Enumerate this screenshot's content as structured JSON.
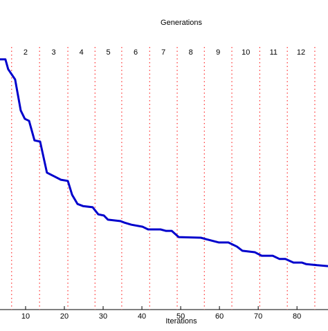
{
  "chart_data": {
    "type": "line",
    "title": "Generations",
    "xlabel": "Iterations",
    "x": [
      3.4,
      4.8,
      5.5,
      7.3,
      8.75,
      9.8,
      10.9,
      12.3,
      13.75,
      15.5,
      17.3,
      19.1,
      20.9,
      22.0,
      23.4,
      24.8,
      27.3,
      28.75,
      30.2,
      31.25,
      34.5,
      35.5,
      37.3,
      40.2,
      41.6,
      44.8,
      46.25,
      47.7,
      49.5,
      55.2,
      56.6,
      59.8,
      62.3,
      64.5,
      65.9,
      69.1,
      70.9,
      73.75,
      75.5,
      77.0,
      79.1,
      81.25,
      82.3,
      85.2,
      88.0
    ],
    "series": [
      {
        "color": "#0000cc",
        "values": [
          84.6,
          84.6,
          81.3,
          77.8,
          67.3,
          64.5,
          63.8,
          57.2,
          56.8,
          46.3,
          45.1,
          43.9,
          43.5,
          38.8,
          35.7,
          35.0,
          34.6,
          32.2,
          31.8,
          30.4,
          29.9,
          29.4,
          28.7,
          28.0,
          27.1,
          27.1,
          26.6,
          26.6,
          24.5,
          24.3,
          23.8,
          22.7,
          22.7,
          21.3,
          19.9,
          19.4,
          18.2,
          18.2,
          17.1,
          17.1,
          15.9,
          15.9,
          15.4,
          15.0,
          14.7
        ]
      }
    ],
    "xlim": [
      3.4,
      88.0
    ],
    "xticks": [
      10,
      20,
      30,
      40,
      50,
      60,
      70,
      80
    ],
    "ylim": [
      0,
      100
    ],
    "generation_boundaries": [
      6.4,
      13.6,
      20.9,
      27.9,
      34.8,
      42.0,
      49.1,
      56.1,
      63.2,
      70.4,
      77.5,
      84.6
    ],
    "generation_labels": [
      "2",
      "3",
      "4",
      "5",
      "6",
      "7",
      "8",
      "9",
      "10",
      "11",
      "12"
    ],
    "boundary_color": "#ff0000"
  }
}
